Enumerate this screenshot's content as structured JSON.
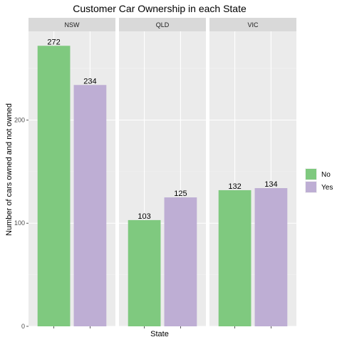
{
  "chart_data": {
    "type": "bar",
    "title": "Customer Car Ownership in each State",
    "xlabel": "State",
    "ylabel": "Number of cars owned and not owned",
    "facets": [
      "NSW",
      "QLD",
      "VIC"
    ],
    "categories": [
      "No",
      "Yes"
    ],
    "series": [
      {
        "facet": "NSW",
        "values": [
          272,
          234
        ]
      },
      {
        "facet": "QLD",
        "values": [
          103,
          125
        ]
      },
      {
        "facet": "VIC",
        "values": [
          132,
          134
        ]
      }
    ],
    "yticks": [
      0,
      100,
      200
    ],
    "ylim": [
      0,
      286
    ],
    "grid": true,
    "legend": {
      "placement": "right",
      "entries": [
        {
          "label": "No",
          "color": "#7fc97f"
        },
        {
          "label": "Yes",
          "color": "#beaed4"
        }
      ]
    }
  }
}
